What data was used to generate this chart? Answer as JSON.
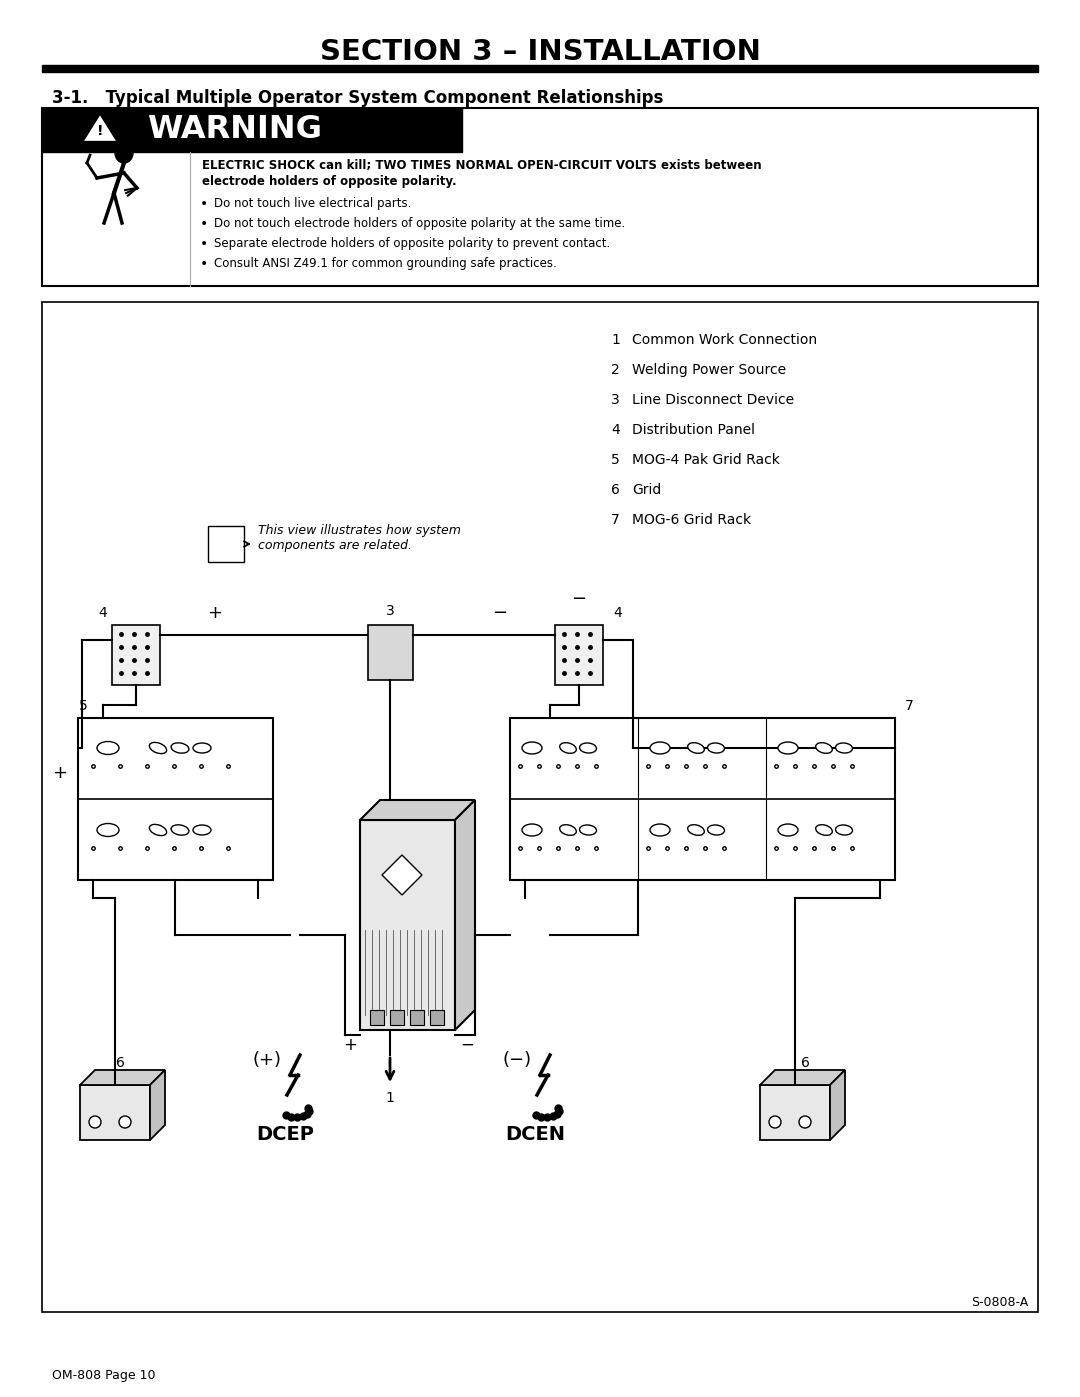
{
  "page_title": "SECTION 3 – INSTALLATION",
  "section_heading": "3-1.   Typical Multiple Operator System Component Relationships",
  "warning_bold_line1": "ELECTRIC SHOCK can kill; TWO TIMES NORMAL OPEN-CIRCUIT VOLTS exists between",
  "warning_bold_line2": "electrode holders of opposite polarity.",
  "warning_bullets": [
    "Do not touch live electrical parts.",
    "Do not touch electrode holders of opposite polarity at the same time.",
    "Separate electrode holders of opposite polarity to prevent contact.",
    "Consult ANSI Z49.1 for common grounding safe practices."
  ],
  "legend_items": [
    [
      "1",
      "Common Work Connection"
    ],
    [
      "2",
      "Welding Power Source"
    ],
    [
      "3",
      "Line Disconnect Device"
    ],
    [
      "4",
      "Distribution Panel"
    ],
    [
      "5",
      "MOG-4 Pak Grid Rack"
    ],
    [
      "6",
      "Grid"
    ],
    [
      "7",
      "MOG-6 Grid Rack"
    ]
  ],
  "note_text": "This view illustrates how system\ncomponents are related.",
  "footer_text": "OM-808 Page 10",
  "diagram_ref": "S-0808-A",
  "bg_color": "#ffffff",
  "black": "#000000"
}
